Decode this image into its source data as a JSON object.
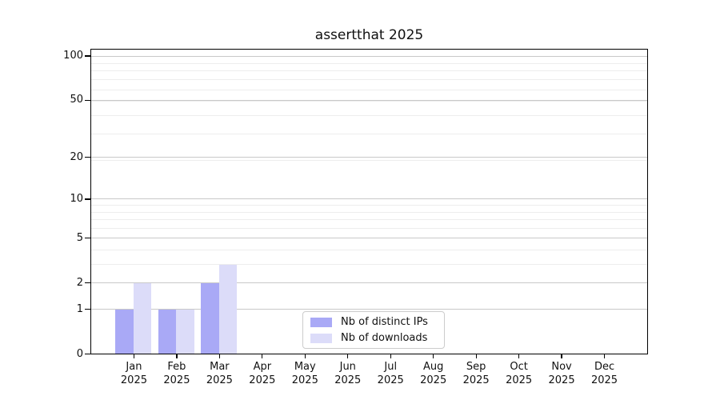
{
  "title": "assertthat 2025",
  "chart_data": {
    "type": "bar",
    "title": "assertthat 2025",
    "categories": [
      "Jan 2025",
      "Feb 2025",
      "Mar 2025",
      "Apr 2025",
      "May 2025",
      "Jun 2025",
      "Jul 2025",
      "Aug 2025",
      "Sep 2025",
      "Oct 2025",
      "Nov 2025",
      "Dec 2025"
    ],
    "x_tick_months": [
      "Jan",
      "Feb",
      "Mar",
      "Apr",
      "May",
      "Jun",
      "Jul",
      "Aug",
      "Sep",
      "Oct",
      "Nov",
      "Dec"
    ],
    "x_tick_year": "2025",
    "series": [
      {
        "name": "Nb of distinct IPs",
        "color": "#a9a9f6",
        "values": [
          1,
          1,
          2,
          0,
          0,
          0,
          0,
          0,
          0,
          0,
          0,
          0
        ]
      },
      {
        "name": "Nb of downloads",
        "color": "#dcdcf9",
        "values": [
          2,
          1,
          3,
          0,
          0,
          0,
          0,
          0,
          0,
          0,
          0,
          0
        ]
      }
    ],
    "xlabel": "",
    "ylabel": "",
    "yscale": "log1p",
    "ylim": [
      0,
      112
    ],
    "yticks": [
      0,
      1,
      2,
      5,
      10,
      20,
      50,
      100
    ],
    "minor_yticks": [
      3,
      4,
      6,
      7,
      8,
      9,
      19,
      29,
      39,
      49,
      59,
      69,
      79,
      89
    ],
    "grid": true,
    "legend_position": "lower center"
  },
  "legend": {
    "items": [
      "Nb of distinct IPs",
      "Nb of downloads"
    ]
  },
  "colors": {
    "background": "#ffffff",
    "bar_distinct_ips": "#a9a9f6",
    "bar_downloads": "#dcdcf9",
    "grid_major": "#c9c9c9",
    "grid_minor": "#ededed",
    "spine": "#000000",
    "text": "#111111",
    "legend_border": "#cccccc"
  }
}
